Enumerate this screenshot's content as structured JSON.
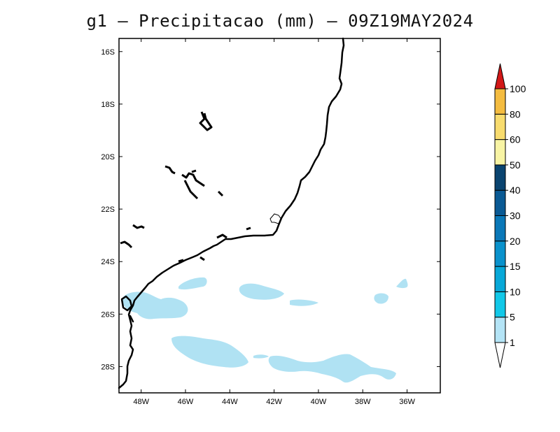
{
  "title": "g1 – Precipitacao (mm) – 09Z19MAY2024",
  "map": {
    "lon_range": [
      -49,
      -34.5
    ],
    "lat_range": [
      -29,
      -15.5
    ],
    "x_ticks": [
      "48W",
      "46W",
      "44W",
      "42W",
      "40W",
      "38W",
      "36W"
    ],
    "x_tick_values": [
      -48,
      -46,
      -44,
      -42,
      -40,
      -38,
      -36
    ],
    "y_ticks": [
      "16S",
      "18S",
      "20S",
      "22S",
      "24S",
      "26S",
      "28S"
    ],
    "y_tick_values": [
      -16,
      -18,
      -20,
      -22,
      -24,
      -26,
      -28
    ],
    "precip_color": "#b0e2f3",
    "coast_color": "#000000"
  },
  "colorbar": {
    "labels": [
      "1",
      "5",
      "10",
      "15",
      "20",
      "30",
      "40",
      "50",
      "60",
      "80",
      "100"
    ],
    "colors": [
      "#b4e4f6",
      "#12c8e8",
      "#08a8d8",
      "#0a92cc",
      "#0a78b8",
      "#0a5a94",
      "#0a4470",
      "#f8f4a4",
      "#f8dc6e",
      "#f4bc40",
      "#f29c0c",
      "#d21818"
    ],
    "below_color": "#ffffff"
  }
}
